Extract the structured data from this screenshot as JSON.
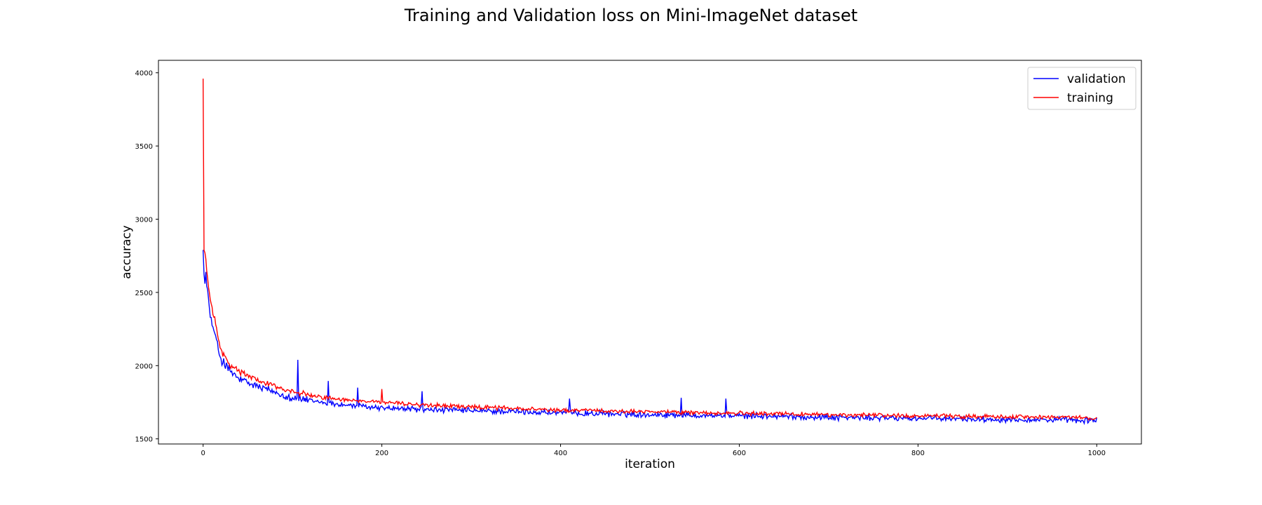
{
  "chart_data": {
    "type": "line",
    "title": "Training and Validation loss on Mini-ImageNet dataset",
    "xlabel": "iteration",
    "ylabel": "accuracy",
    "xlim": [
      -50,
      1050
    ],
    "ylim": [
      1465,
      4085
    ],
    "xticks": [
      0,
      200,
      400,
      600,
      800,
      1000
    ],
    "yticks": [
      1500,
      2000,
      2500,
      3000,
      3500,
      4000
    ],
    "grid": false,
    "legend_position": "top-right",
    "series": [
      {
        "name": "validation",
        "color": "#0000ff",
        "anchors": [
          [
            0,
            2790
          ],
          [
            2,
            2560
          ],
          [
            5,
            2520
          ],
          [
            8,
            2330
          ],
          [
            12,
            2240
          ],
          [
            16,
            2130
          ],
          [
            20,
            2050
          ],
          [
            25,
            2000
          ],
          [
            30,
            1960
          ],
          [
            40,
            1910
          ],
          [
            50,
            1880
          ],
          [
            60,
            1860
          ],
          [
            70,
            1840
          ],
          [
            80,
            1820
          ],
          [
            90,
            1800
          ],
          [
            100,
            1780
          ],
          [
            120,
            1760
          ],
          [
            140,
            1745
          ],
          [
            160,
            1730
          ],
          [
            180,
            1720
          ],
          [
            200,
            1712
          ],
          [
            250,
            1700
          ],
          [
            300,
            1692
          ],
          [
            350,
            1685
          ],
          [
            400,
            1678
          ],
          [
            450,
            1672
          ],
          [
            500,
            1667
          ],
          [
            550,
            1662
          ],
          [
            600,
            1658
          ],
          [
            650,
            1653
          ],
          [
            700,
            1647
          ],
          [
            750,
            1643
          ],
          [
            800,
            1640
          ],
          [
            850,
            1636
          ],
          [
            900,
            1633
          ],
          [
            950,
            1630
          ],
          [
            1000,
            1625
          ]
        ],
        "noise": 25,
        "spikes": [
          [
            3,
            2640
          ],
          [
            106,
            2040
          ],
          [
            140,
            1895
          ],
          [
            173,
            1850
          ],
          [
            245,
            1825
          ],
          [
            410,
            1775
          ],
          [
            535,
            1780
          ],
          [
            585,
            1775
          ]
        ]
      },
      {
        "name": "training",
        "color": "#ff0000",
        "anchors": [
          [
            0,
            3960
          ],
          [
            1,
            2790
          ],
          [
            2,
            2770
          ],
          [
            4,
            2650
          ],
          [
            7,
            2500
          ],
          [
            10,
            2400
          ],
          [
            14,
            2280
          ],
          [
            18,
            2150
          ],
          [
            22,
            2080
          ],
          [
            30,
            2010
          ],
          [
            40,
            1960
          ],
          [
            50,
            1930
          ],
          [
            60,
            1905
          ],
          [
            70,
            1880
          ],
          [
            80,
            1860
          ],
          [
            90,
            1840
          ],
          [
            100,
            1820
          ],
          [
            120,
            1795
          ],
          [
            140,
            1780
          ],
          [
            160,
            1768
          ],
          [
            180,
            1758
          ],
          [
            200,
            1750
          ],
          [
            250,
            1730
          ],
          [
            300,
            1718
          ],
          [
            350,
            1708
          ],
          [
            400,
            1698
          ],
          [
            450,
            1692
          ],
          [
            500,
            1686
          ],
          [
            550,
            1680
          ],
          [
            600,
            1675
          ],
          [
            650,
            1670
          ],
          [
            700,
            1665
          ],
          [
            750,
            1662
          ],
          [
            800,
            1658
          ],
          [
            850,
            1655
          ],
          [
            900,
            1652
          ],
          [
            950,
            1648
          ],
          [
            1000,
            1640
          ]
        ],
        "noise": 17,
        "spikes": [
          [
            200,
            1840
          ]
        ]
      }
    ]
  }
}
